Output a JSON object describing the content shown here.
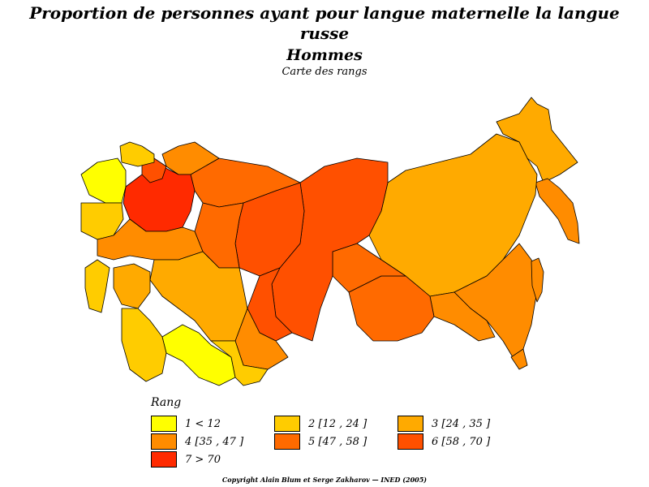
{
  "title": {
    "line1": "Proportion de personnes ayant pour langue maternelle la langue",
    "line2": "russe",
    "line3": "Hommes",
    "subtitle": "Carte des rangs"
  },
  "legend": {
    "title": "Rang",
    "items": [
      {
        "label": "1  <  12",
        "color": "#ffff00"
      },
      {
        "label": "2  [12 ,  24 ]",
        "color": "#ffcc00"
      },
      {
        "label": "3  [24 ,  35 ]",
        "color": "#ffaa00"
      },
      {
        "label": "4  [35 ,  47 ]",
        "color": "#ff8c00"
      },
      {
        "label": "5  [47 ,  58 ]",
        "color": "#ff6a00"
      },
      {
        "label": "6  [58 ,  70 ]",
        "color": "#ff5000"
      },
      {
        "label": "7  >  70",
        "color": "#ff2a00"
      }
    ]
  },
  "copyright": "Copyright Alain Blum et Serge Zakharov  —  INED (2005)"
}
